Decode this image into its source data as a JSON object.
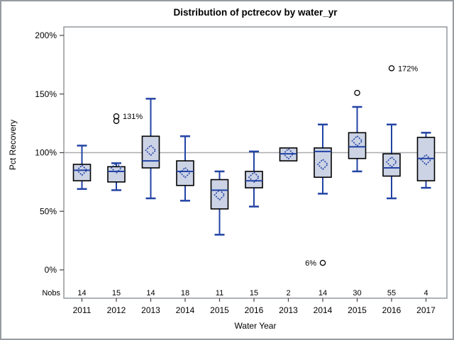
{
  "title": "Distribution of pctrecov by water_yr",
  "chart_data": {
    "type": "boxplot",
    "title": "Distribution of pctrecov by water_yr",
    "xlabel": "Water Year",
    "ylabel": "Pct Recovery",
    "nobs_label": "Nobs",
    "ylim": [
      0,
      200
    ],
    "y_ticks": [
      0,
      50,
      100,
      150,
      200
    ],
    "y_tick_labels": [
      "0%",
      "50%",
      "100%",
      "150%",
      "200%"
    ],
    "reference_line": 100,
    "grid": "reference line at 100% only",
    "legend_position": "none",
    "categories": [
      "2011",
      "2012",
      "2013",
      "2014",
      "2015",
      "2016",
      "2013",
      "2014",
      "2015",
      "2016",
      "2017"
    ],
    "nobs": [
      "14",
      "15",
      "14",
      "18",
      "11",
      "15",
      "2",
      "14",
      "30",
      "55",
      "4"
    ],
    "boxes": [
      {
        "year": "2011",
        "nobs": "14",
        "low": 69,
        "q1": 76,
        "median": 85,
        "q3": 90,
        "high": 106,
        "mean": 85,
        "outliers": []
      },
      {
        "year": "2012",
        "nobs": "15",
        "low": 68,
        "q1": 75,
        "median": 84,
        "q3": 88,
        "high": 91,
        "mean": 87,
        "outliers": [
          {
            "value": 131,
            "label": "131%",
            "label_side": "right"
          },
          {
            "value": 127
          }
        ]
      },
      {
        "year": "2013",
        "nobs": "14",
        "low": 61,
        "q1": 87,
        "median": 93,
        "q3": 114,
        "high": 146,
        "mean": 102,
        "outliers": []
      },
      {
        "year": "2014",
        "nobs": "18",
        "low": 59,
        "q1": 72,
        "median": 84,
        "q3": 93,
        "high": 114,
        "mean": 83,
        "outliers": []
      },
      {
        "year": "2015",
        "nobs": "11",
        "low": 30,
        "q1": 52,
        "median": 68,
        "q3": 77,
        "high": 84,
        "mean": 64,
        "outliers": []
      },
      {
        "year": "2016",
        "nobs": "15",
        "low": 54,
        "q1": 70,
        "median": 76,
        "q3": 84,
        "high": 101,
        "mean": 79,
        "outliers": []
      },
      {
        "year": "2013",
        "nobs": "2",
        "low": 93,
        "q1": 93,
        "median": 99,
        "q3": 104,
        "high": 104,
        "mean": 99,
        "outliers": []
      },
      {
        "year": "2014",
        "nobs": "14",
        "low": 65,
        "q1": 79,
        "median": 101,
        "q3": 104,
        "high": 124,
        "mean": 90,
        "outliers": [
          {
            "value": 6,
            "label": "6%",
            "label_side": "left"
          }
        ]
      },
      {
        "year": "2015",
        "nobs": "30",
        "low": 84,
        "q1": 95,
        "median": 105,
        "q3": 117,
        "high": 139,
        "mean": 110,
        "outliers": [
          {
            "value": 151
          }
        ]
      },
      {
        "year": "2016",
        "nobs": "55",
        "low": 61,
        "q1": 80,
        "median": 87,
        "q3": 99,
        "high": 124,
        "mean": 92,
        "outliers": [
          {
            "value": 172,
            "label": "172%",
            "label_side": "right"
          }
        ]
      },
      {
        "year": "2017",
        "nobs": "4",
        "low": 70,
        "q1": 76,
        "median": 95,
        "q3": 113,
        "high": 117,
        "mean": 94,
        "outliers": []
      }
    ],
    "colors": {
      "box_fill": "#ccd3e5",
      "box_stroke": "#000000",
      "line_blue": "#2243a5",
      "reference_grid": "#a9abb0",
      "frame": "#8b9196",
      "outlier_stroke": "#000000",
      "text": "#000000"
    }
  }
}
